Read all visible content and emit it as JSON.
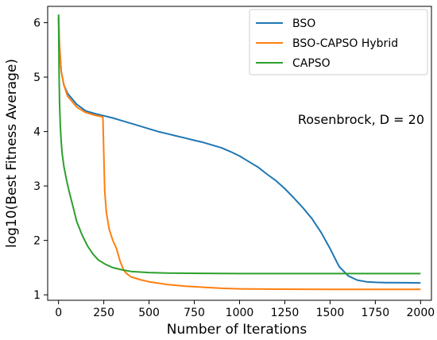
{
  "chart_data": {
    "type": "line",
    "xlabel": "Number of Iterations",
    "ylabel": "log10(Best Fitness Average)",
    "xlim": [
      -60,
      2060
    ],
    "ylim": [
      0.9,
      6.3
    ],
    "xticks": [
      0,
      250,
      500,
      750,
      1000,
      1250,
      1500,
      1750,
      2000
    ],
    "yticks": [
      1,
      2,
      3,
      4,
      5,
      6
    ],
    "grid": false,
    "legend_position": "top-right",
    "annotation": "Rosenbrock, D = 20",
    "series": [
      {
        "name": "BSO",
        "color": "#1f77b4",
        "points": [
          [
            0,
            6.1
          ],
          [
            5,
            5.6
          ],
          [
            15,
            5.1
          ],
          [
            30,
            4.85
          ],
          [
            50,
            4.7
          ],
          [
            75,
            4.6
          ],
          [
            100,
            4.5
          ],
          [
            150,
            4.38
          ],
          [
            200,
            4.33
          ],
          [
            250,
            4.29
          ],
          [
            300,
            4.25
          ],
          [
            350,
            4.2
          ],
          [
            400,
            4.15
          ],
          [
            450,
            4.1
          ],
          [
            500,
            4.05
          ],
          [
            550,
            4.0
          ],
          [
            600,
            3.96
          ],
          [
            650,
            3.92
          ],
          [
            700,
            3.88
          ],
          [
            750,
            3.84
          ],
          [
            800,
            3.8
          ],
          [
            850,
            3.75
          ],
          [
            900,
            3.7
          ],
          [
            950,
            3.63
          ],
          [
            1000,
            3.55
          ],
          [
            1050,
            3.45
          ],
          [
            1100,
            3.35
          ],
          [
            1150,
            3.22
          ],
          [
            1200,
            3.1
          ],
          [
            1250,
            2.95
          ],
          [
            1300,
            2.78
          ],
          [
            1350,
            2.6
          ],
          [
            1400,
            2.4
          ],
          [
            1450,
            2.15
          ],
          [
            1500,
            1.85
          ],
          [
            1550,
            1.52
          ],
          [
            1600,
            1.35
          ],
          [
            1650,
            1.27
          ],
          [
            1700,
            1.24
          ],
          [
            1750,
            1.23
          ],
          [
            1800,
            1.225
          ],
          [
            2000,
            1.22
          ]
        ]
      },
      {
        "name": "BSO-CAPSO Hybrid",
        "color": "#ff7f0e",
        "points": [
          [
            0,
            6.1
          ],
          [
            5,
            5.6
          ],
          [
            15,
            5.1
          ],
          [
            30,
            4.85
          ],
          [
            50,
            4.65
          ],
          [
            75,
            4.55
          ],
          [
            100,
            4.45
          ],
          [
            150,
            4.35
          ],
          [
            200,
            4.3
          ],
          [
            245,
            4.27
          ],
          [
            250,
            3.6
          ],
          [
            255,
            2.9
          ],
          [
            265,
            2.5
          ],
          [
            280,
            2.2
          ],
          [
            300,
            2.0
          ],
          [
            320,
            1.85
          ],
          [
            340,
            1.62
          ],
          [
            360,
            1.45
          ],
          [
            380,
            1.38
          ],
          [
            400,
            1.33
          ],
          [
            450,
            1.28
          ],
          [
            500,
            1.24
          ],
          [
            600,
            1.19
          ],
          [
            700,
            1.16
          ],
          [
            800,
            1.14
          ],
          [
            900,
            1.12
          ],
          [
            1000,
            1.11
          ],
          [
            1200,
            1.105
          ],
          [
            1500,
            1.1
          ],
          [
            2000,
            1.1
          ]
        ]
      },
      {
        "name": "CAPSO",
        "color": "#2ca02c",
        "points": [
          [
            0,
            6.15
          ],
          [
            3,
            5.0
          ],
          [
            6,
            4.5
          ],
          [
            10,
            4.1
          ],
          [
            15,
            3.8
          ],
          [
            20,
            3.6
          ],
          [
            30,
            3.35
          ],
          [
            45,
            3.1
          ],
          [
            60,
            2.88
          ],
          [
            80,
            2.62
          ],
          [
            100,
            2.35
          ],
          [
            130,
            2.1
          ],
          [
            160,
            1.9
          ],
          [
            190,
            1.75
          ],
          [
            220,
            1.64
          ],
          [
            260,
            1.56
          ],
          [
            300,
            1.5
          ],
          [
            350,
            1.46
          ],
          [
            400,
            1.43
          ],
          [
            500,
            1.41
          ],
          [
            600,
            1.4
          ],
          [
            800,
            1.395
          ],
          [
            1000,
            1.39
          ],
          [
            1500,
            1.39
          ],
          [
            2000,
            1.39
          ]
        ]
      }
    ]
  }
}
